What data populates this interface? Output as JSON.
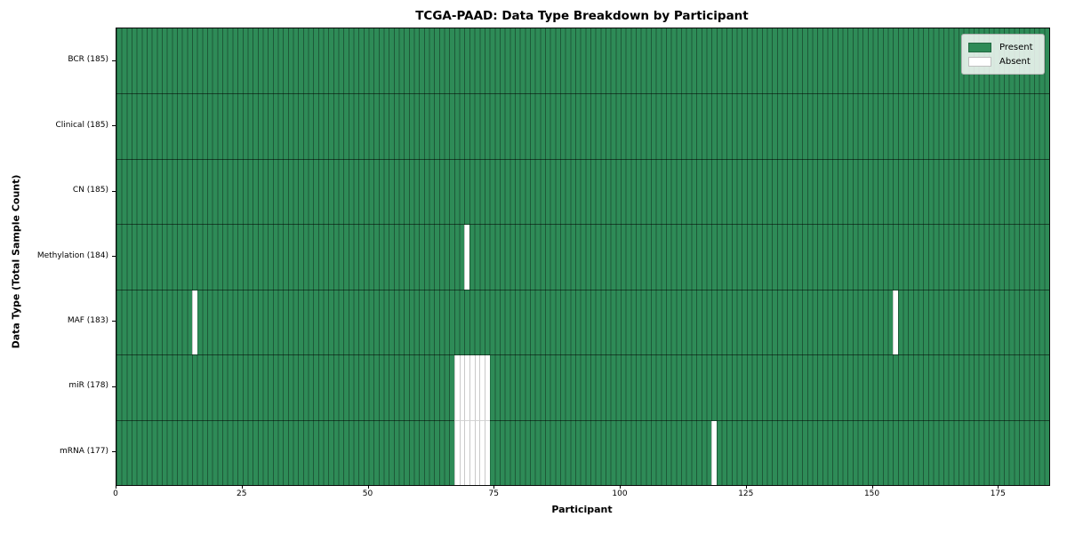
{
  "title": "TCGA-PAAD: Data Type Breakdown by Participant",
  "x_axis": {
    "label": "Participant",
    "ticks": [
      0,
      25,
      50,
      75,
      100,
      125,
      150,
      175
    ]
  },
  "y_axis": {
    "label": "Data Type (Total Sample Count)"
  },
  "legend": {
    "present_label": "Present",
    "absent_label": "Absent"
  },
  "colors": {
    "present": "#2e8b57",
    "absent": "#ffffff"
  },
  "chart_data": {
    "type": "heatmap",
    "title": "TCGA-PAAD: Data Type Breakdown by Participant",
    "xlabel": "Participant",
    "ylabel": "Data Type (Total Sample Count)",
    "x_range": [
      0,
      185
    ],
    "n_participants": 185,
    "legend": [
      "Present",
      "Absent"
    ],
    "legend_position": "upper right",
    "grid": "per-participant vertical cell edges, horizontal row separators",
    "rows": [
      {
        "label": "BCR (185)",
        "data_type": "BCR",
        "total": 185,
        "absent_participants": []
      },
      {
        "label": "Clinical (185)",
        "data_type": "Clinical",
        "total": 185,
        "absent_participants": []
      },
      {
        "label": "CN (185)",
        "data_type": "CN",
        "total": 185,
        "absent_participants": []
      },
      {
        "label": "Methylation (184)",
        "data_type": "Methylation",
        "total": 184,
        "absent_participants": [
          69
        ]
      },
      {
        "label": "MAF (183)",
        "data_type": "MAF",
        "total": 183,
        "absent_participants": [
          15,
          154
        ]
      },
      {
        "label": "miR (178)",
        "data_type": "miR",
        "total": 178,
        "absent_participants": [
          67,
          68,
          69,
          70,
          71,
          72,
          73
        ]
      },
      {
        "label": "mRNA (177)",
        "data_type": "mRNA",
        "total": 177,
        "absent_participants": [
          67,
          68,
          69,
          70,
          71,
          72,
          73,
          118
        ]
      }
    ]
  }
}
